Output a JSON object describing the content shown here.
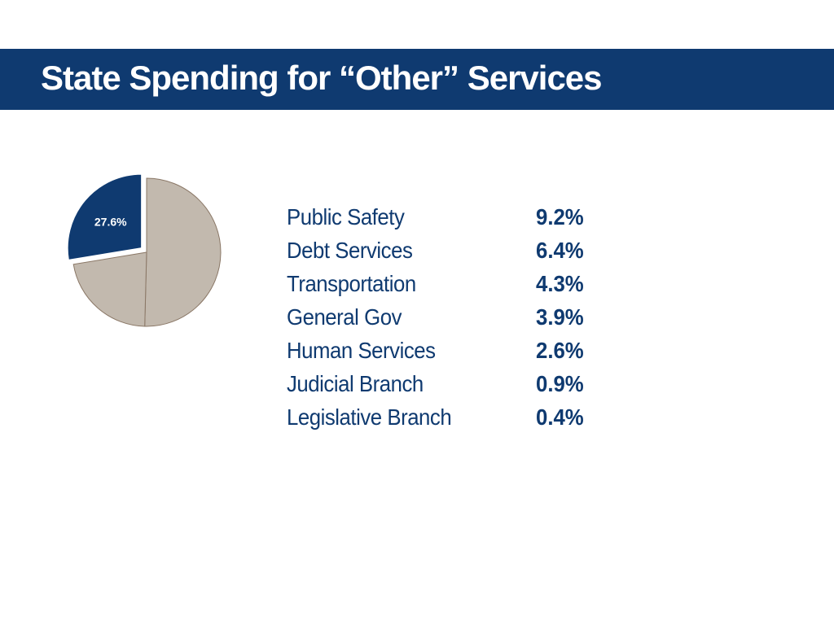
{
  "slide": {
    "title": "State Spending for “Other” Services"
  },
  "colors": {
    "title_bar": "#0f3a70",
    "highlight_slice": "#0f3a70",
    "other_slices": "#c2b9ae",
    "slice_border": "#8a7766",
    "legend_text": "#0f3a70"
  },
  "chart_data": {
    "type": "pie",
    "title": "",
    "slices": [
      {
        "value": 27.6,
        "label": "27.6%",
        "highlighted": true
      },
      {
        "value": 50.4,
        "label": "",
        "highlighted": false
      },
      {
        "value": 22.0,
        "label": "",
        "highlighted": false
      }
    ],
    "legend": [
      {
        "name": "Public Safety",
        "value": "9.2%"
      },
      {
        "name": "Debt Services",
        "value": "6.4%"
      },
      {
        "name": "Transportation",
        "value": "4.3%"
      },
      {
        "name": "General Gov",
        "value": "3.9%"
      },
      {
        "name": "Human Services",
        "value": "2.6%"
      },
      {
        "name": "Judicial Branch",
        "value": "0.9%"
      },
      {
        "name": "Legislative Branch",
        "value": "0.4%"
      }
    ]
  }
}
